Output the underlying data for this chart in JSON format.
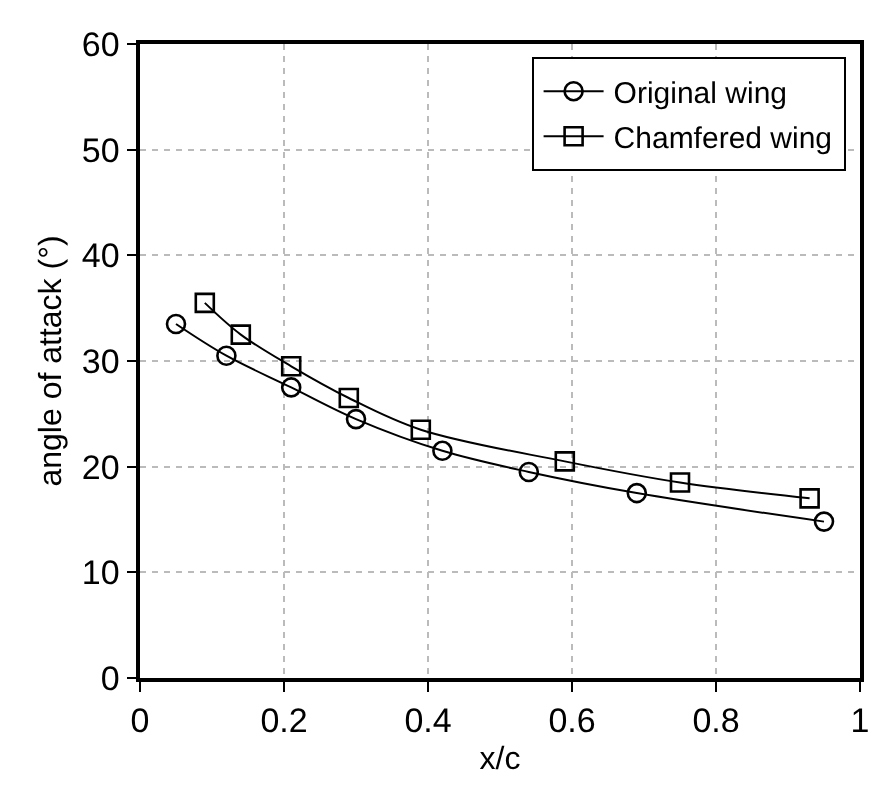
{
  "chart_data": {
    "type": "line",
    "xlabel": "x/c",
    "ylabel": "angle of attack (°)",
    "xlim": [
      0,
      1
    ],
    "ylim": [
      0,
      60
    ],
    "xticks": [
      0,
      0.2,
      0.4,
      0.6,
      0.8,
      1
    ],
    "yticks": [
      0,
      10,
      20,
      30,
      40,
      50,
      60
    ],
    "grid": true,
    "legend": "top right",
    "series": [
      {
        "name": "Original wing",
        "color": "#000000",
        "marker": "circle",
        "x": [
          0.05,
          0.12,
          0.21,
          0.3,
          0.42,
          0.54,
          0.69,
          0.95
        ],
        "values": [
          33.5,
          30.5,
          27.5,
          24.5,
          21.5,
          19.5,
          17.5,
          14.8
        ]
      },
      {
        "name": "Chamfered wing",
        "color": "#000000",
        "marker": "square",
        "x": [
          0.09,
          0.14,
          0.21,
          0.29,
          0.39,
          0.59,
          0.75,
          0.93
        ],
        "values": [
          35.5,
          32.5,
          29.5,
          26.5,
          23.5,
          20.5,
          18.5,
          17
        ]
      }
    ]
  }
}
